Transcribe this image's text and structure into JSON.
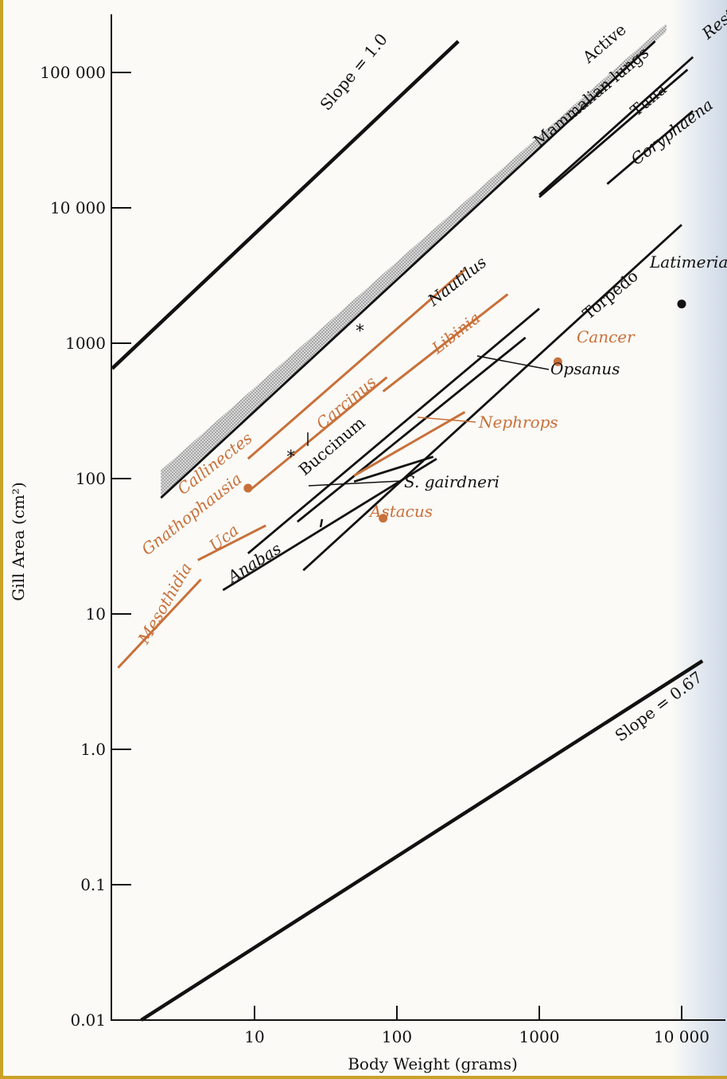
{
  "chart_data": {
    "type": "line",
    "x_scale": "log",
    "y_scale": "log",
    "xlabel": "Body Weight (grams)",
    "ylabel": "Gill Area (cm²)",
    "xlim": [
      1,
      14000
    ],
    "ylim": [
      0.01,
      170000
    ],
    "x_ticks": [
      {
        "value": 10,
        "label": "10"
      },
      {
        "value": 100,
        "label": "100"
      },
      {
        "value": 1000,
        "label": "1000"
      },
      {
        "value": 10000,
        "label": "10 000"
      }
    ],
    "y_ticks": [
      {
        "value": 0.01,
        "label": "0.01"
      },
      {
        "value": 0.1,
        "label": "0.1"
      },
      {
        "value": 1,
        "label": "1.0"
      },
      {
        "value": 10,
        "label": "10"
      },
      {
        "value": 100,
        "label": "100"
      },
      {
        "value": 1000,
        "label": "1000"
      },
      {
        "value": 10000,
        "label": "10 000"
      },
      {
        "value": 100000,
        "label": "100 000"
      }
    ],
    "colors": {
      "crustacean": "#c8703a",
      "other": "#111111",
      "band": "#bdbdbd"
    },
    "band": {
      "name": "Mammalian lungs",
      "lower": [
        [
          2.2,
          72
        ],
        [
          7800,
          200000
        ]
      ],
      "upper": [
        [
          2.2,
          115
        ],
        [
          7800,
          230000
        ]
      ]
    },
    "lines": [
      {
        "name": "Slope = 1.0",
        "group": "reference",
        "x": [
          1,
          270
        ],
        "y": [
          650,
          170000
        ]
      },
      {
        "name": "Slope = 0.67",
        "group": "reference",
        "x": [
          1.6,
          14000
        ],
        "y": [
          0.01,
          4.5
        ]
      },
      {
        "name": "Active",
        "group": "other",
        "x": [
          2.2,
          6500
        ],
        "y": [
          72,
          170000
        ]
      },
      {
        "name": "Rest",
        "group": "other",
        "x": [
          1000,
          12000
        ],
        "y": [
          12500,
          130000
        ]
      },
      {
        "name": "Tuna",
        "group": "other",
        "x": [
          1000,
          11000
        ],
        "y": [
          12000,
          105000
        ]
      },
      {
        "name": "Coryphaena",
        "group": "other",
        "x": [
          3000,
          12000
        ],
        "y": [
          15000,
          52000
        ]
      },
      {
        "name": "Torpedo",
        "group": "other",
        "x": [
          22,
          10000
        ],
        "y": [
          21,
          7500
        ]
      },
      {
        "name": "Opsanus",
        "group": "other",
        "x": [
          9,
          1000
        ],
        "y": [
          28,
          1800
        ]
      },
      {
        "name": "Buccinum",
        "group": "other",
        "x": [
          20,
          800
        ],
        "y": [
          48,
          1100
        ]
      },
      {
        "name": "S. gairdneri",
        "group": "other",
        "x": [
          50,
          180
        ],
        "y": [
          95,
          145
        ]
      },
      {
        "name": "Anabas",
        "group": "other",
        "x": [
          6,
          190
        ],
        "y": [
          15,
          140
        ]
      },
      {
        "name": "Callinectes",
        "group": "crustacean",
        "x": [
          9,
          300
        ],
        "y": [
          140,
          3500
        ]
      },
      {
        "name": "Carcinus",
        "group": "crustacean",
        "x": [
          9,
          85
        ],
        "y": [
          80,
          560
        ]
      },
      {
        "name": "Libinia",
        "group": "crustacean",
        "x": [
          80,
          600
        ],
        "y": [
          440,
          2300
        ]
      },
      {
        "name": "Nephrops",
        "group": "crustacean",
        "x": [
          50,
          300
        ],
        "y": [
          105,
          310
        ]
      },
      {
        "name": "Gnathophausia",
        "group": "crustacean",
        "x": [
          4,
          12
        ],
        "y": [
          25,
          45
        ]
      },
      {
        "name": "Mesothidia",
        "group": "crustacean",
        "x": [
          1.1,
          4.2
        ],
        "y": [
          4,
          18
        ]
      }
    ],
    "points": [
      {
        "name": "Callinectes",
        "x": 9,
        "y": 85,
        "group": "crustacean",
        "marker": "dot"
      },
      {
        "name": "Astacus",
        "x": 80,
        "y": 51,
        "group": "crustacean",
        "marker": "dot"
      },
      {
        "name": "Cancer",
        "x": 1350,
        "y": 730,
        "group": "crustacean",
        "marker": "dot"
      },
      {
        "name": "Latimeria",
        "x": 10000,
        "y": 1950,
        "group": "other",
        "marker": "dot"
      },
      {
        "name": "Nautilus",
        "x": 55,
        "y": 1280,
        "group": "other",
        "marker": "star"
      },
      {
        "name": "Buccinum",
        "x": 18,
        "y": 150,
        "group": "other",
        "marker": "star"
      }
    ],
    "labels": {
      "slope1": "Slope = 1.0",
      "slope067": "Slope = 0.67",
      "active": "Active",
      "lungs": "Mammalian lungs",
      "rest": "Rest",
      "tuna": "Tuna",
      "coryphaena": "Coryphaena",
      "latimeria": "Latimeria",
      "torpedo": "Torpedo",
      "nautilus": "Nautilus",
      "libinia": "Libinia",
      "cancer": "Cancer",
      "opsanus": "Opsanus",
      "carcinus": "Carcinus",
      "buccinum": "Buccinum",
      "nephrops": "Nephrops",
      "callinectes": "Callinectes",
      "gnathophausia": "Gnathophausia",
      "s_gairdneri": "S. gairdneri",
      "astacus": "Astacus",
      "uca": "Uca",
      "anabas": "Anabas",
      "mesothidia": "Mesothidia"
    }
  }
}
